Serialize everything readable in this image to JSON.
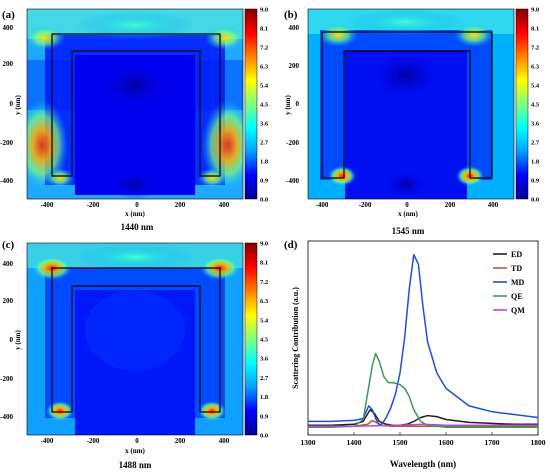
{
  "panels": {
    "a": {
      "label": "(a)",
      "caption": "1440 nm"
    },
    "b": {
      "label": "(b)",
      "caption": "1545 nm"
    },
    "c": {
      "label": "(c)",
      "caption": "1488 nm"
    },
    "d": {
      "label": "(d)"
    }
  },
  "colorbar": {
    "ticks": [
      "0.0",
      "0.9",
      "1.8",
      "2.7",
      "3.6",
      "4.5",
      "5.4",
      "6.3",
      "7.2",
      "8.1",
      "9.0"
    ],
    "colors": [
      "#00008f",
      "#0000ff",
      "#00a0ff",
      "#00ffff",
      "#80ff80",
      "#ffff00",
      "#ff8000",
      "#ff0000",
      "#800000"
    ]
  },
  "field_maps": {
    "x_label": "x (nm)",
    "y_label": "y (nm)",
    "x_ticks": [
      "-400",
      "-200",
      "0",
      "200",
      "400"
    ],
    "y_ticks": [
      "400",
      "200",
      "0",
      "-200",
      "-400"
    ],
    "x_range": [
      -480,
      480
    ],
    "y_range": [
      -480,
      480
    ],
    "structure_outline_nm": {
      "outer": [
        [
          -400,
          -380
        ],
        [
          -400,
          380
        ],
        [
          400,
          380
        ],
        [
          400,
          -380
        ],
        [
          300,
          -380
        ],
        [
          300,
          280
        ],
        [
          -300,
          280
        ],
        [
          -300,
          -380
        ]
      ]
    }
  },
  "chart_data": {
    "type": "line",
    "xlabel": "Wavelength (nm)",
    "ylabel": "Scattering Contribution (a.u.)",
    "xlim": [
      1300,
      1800
    ],
    "ylim": [
      0,
      1
    ],
    "x_ticks": [
      "1300",
      "1400",
      "1500",
      "1600",
      "1700",
      "1800"
    ],
    "legend_position": "top-right",
    "series": [
      {
        "name": "ED",
        "color": "#222222",
        "x": [
          1300,
          1350,
          1400,
          1420,
          1435,
          1445,
          1455,
          1470,
          1485,
          1500,
          1515,
          1530,
          1545,
          1560,
          1580,
          1600,
          1650,
          1700,
          1750,
          1800
        ],
        "y": [
          0.05,
          0.05,
          0.055,
          0.07,
          0.13,
          0.11,
          0.07,
          0.055,
          0.05,
          0.05,
          0.055,
          0.07,
          0.09,
          0.1,
          0.095,
          0.08,
          0.065,
          0.06,
          0.055,
          0.055
        ]
      },
      {
        "name": "TD",
        "color": "#c0552a",
        "x": [
          1300,
          1400,
          1430,
          1440,
          1448,
          1460,
          1480,
          1500,
          1530,
          1560,
          1600,
          1700,
          1800
        ],
        "y": [
          0.04,
          0.045,
          0.055,
          0.075,
          0.065,
          0.05,
          0.045,
          0.045,
          0.045,
          0.045,
          0.045,
          0.045,
          0.045
        ]
      },
      {
        "name": "MD",
        "color": "#1f4fd6",
        "x": [
          1300,
          1350,
          1400,
          1420,
          1432,
          1440,
          1448,
          1455,
          1462,
          1470,
          1480,
          1490,
          1500,
          1510,
          1520,
          1530,
          1540,
          1550,
          1560,
          1580,
          1600,
          1650,
          1700,
          1800
        ],
        "y": [
          0.07,
          0.07,
          0.075,
          0.085,
          0.15,
          0.13,
          0.08,
          0.05,
          0.06,
          0.09,
          0.14,
          0.21,
          0.32,
          0.5,
          0.75,
          0.93,
          0.88,
          0.66,
          0.48,
          0.32,
          0.24,
          0.15,
          0.12,
          0.09
        ]
      },
      {
        "name": "QE",
        "color": "#3a9a5a",
        "x": [
          1300,
          1350,
          1400,
          1420,
          1430,
          1440,
          1447,
          1455,
          1465,
          1475,
          1485,
          1500,
          1510,
          1520,
          1530,
          1545,
          1560,
          1580,
          1600,
          1650,
          1700,
          1800
        ],
        "y": [
          0.04,
          0.04,
          0.045,
          0.08,
          0.22,
          0.36,
          0.42,
          0.38,
          0.3,
          0.27,
          0.27,
          0.26,
          0.24,
          0.2,
          0.13,
          0.07,
          0.05,
          0.045,
          0.04,
          0.04,
          0.04,
          0.04
        ]
      },
      {
        "name": "QM",
        "color": "#b04fd0",
        "x": [
          1300,
          1400,
          1450,
          1500,
          1550,
          1600,
          1700,
          1800
        ],
        "y": [
          0.045,
          0.045,
          0.048,
          0.05,
          0.055,
          0.05,
          0.05,
          0.05
        ]
      }
    ]
  }
}
